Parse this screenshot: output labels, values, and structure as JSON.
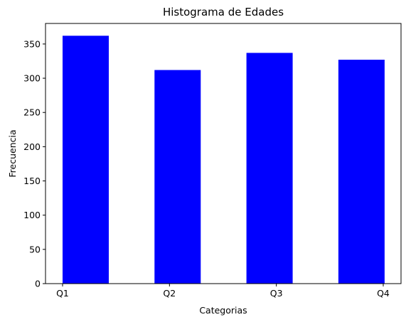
{
  "chart_data": {
    "type": "bar",
    "title": "Histograma de Edades",
    "xlabel": "Categorias",
    "ylabel": "Frecuencia",
    "categories": [
      "Q1",
      "Q2",
      "Q3",
      "Q4"
    ],
    "values": [
      362,
      312,
      337,
      327
    ],
    "xticks": [
      "Q1",
      "Q2",
      "Q3",
      "Q4"
    ],
    "yticks": [
      0,
      50,
      100,
      150,
      200,
      250,
      300,
      350
    ],
    "ylim": [
      0,
      380
    ],
    "bar_color": "#0000ff",
    "grid": false,
    "legend": "none"
  }
}
